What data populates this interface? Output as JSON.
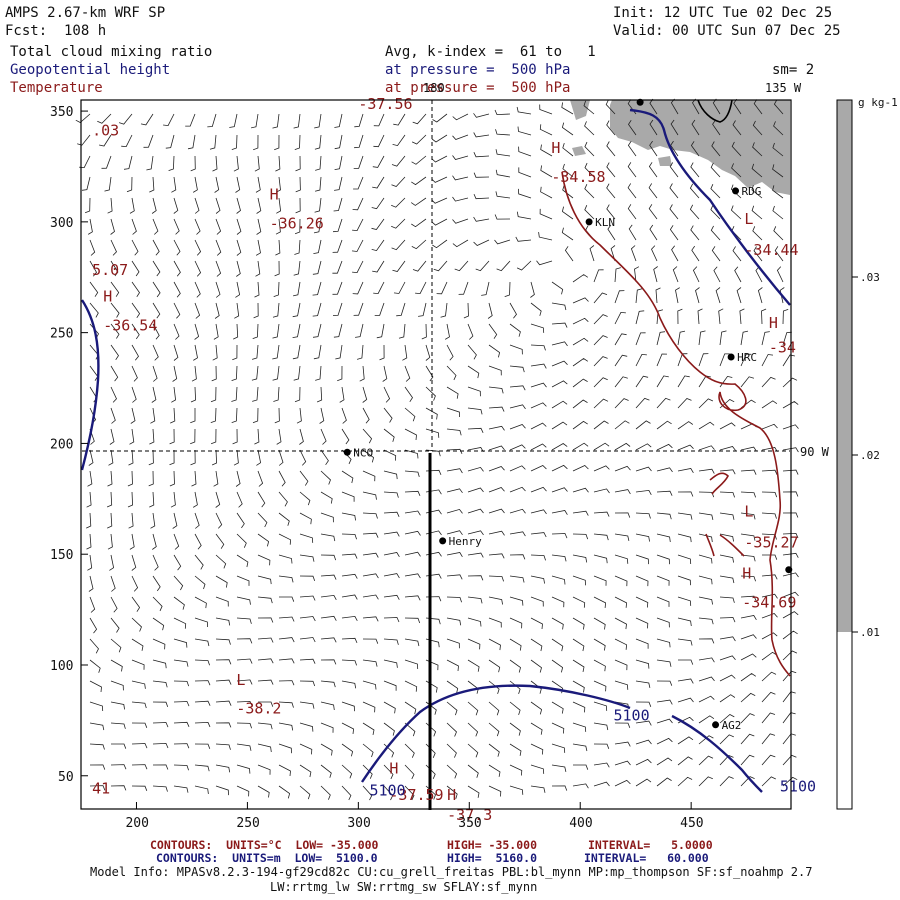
{
  "header": {
    "title": "AMPS 2.67-km WRF SP",
    "forecast": "Fcst:  108 h",
    "init": "Init: 12 UTC Tue 02 Dec 25",
    "valid": "Valid: 00 UTC Sun 07 Dec 25",
    "field1": "Total cloud mixing ratio",
    "field2": "Geopotential height",
    "field3": "Temperature",
    "avg": "Avg, k-index =  61 to   1",
    "pressure1": "at pressure =  500 hPa",
    "pressure2": "at pressure =  500 hPa",
    "smoothing": "sm= 2"
  },
  "axes": {
    "x_ticks": [
      "200",
      "250",
      "300",
      "350",
      "400",
      "450"
    ],
    "y_ticks": [
      "350",
      "300",
      "250",
      "200",
      "150",
      "100",
      "50"
    ],
    "meridian_180": "180",
    "meridian_135w": "135 W",
    "meridian_90w": "90 W"
  },
  "colorbar": {
    "unit": "g kg-1",
    "labels": [
      ".03",
      ".02",
      ".01"
    ],
    "colors": [
      "#a9a9a9",
      "#ffffff"
    ]
  },
  "stations": [
    {
      "name": "NCO",
      "x": 295,
      "y": 196
    },
    {
      "name": "Henry",
      "x": 338,
      "y": 156
    },
    {
      "name": "KLN",
      "x": 404,
      "y": 300
    },
    {
      "name": "RDG",
      "x": 470,
      "y": 314
    },
    {
      "name": "HRC",
      "x": 468,
      "y": 239
    },
    {
      "name": "AG2",
      "x": 461,
      "y": 73
    }
  ],
  "labels": {
    "temp": [
      {
        "text": "-37.56",
        "x": 300,
        "y": 351
      },
      {
        "text": "H",
        "x": 387,
        "y": 331
      },
      {
        "text": "-34.58",
        "x": 387,
        "y": 318
      },
      {
        "text": "H",
        "x": 260,
        "y": 310
      },
      {
        "text": "-36.26",
        "x": 260,
        "y": 297
      },
      {
        "text": "L",
        "x": 474,
        "y": 299
      },
      {
        "text": "-34.44",
        "x": 474,
        "y": 285
      },
      {
        "text": "H",
        "x": 185,
        "y": 264
      },
      {
        "text": "-36.54",
        "x": 185,
        "y": 251
      },
      {
        "text": "H",
        "x": 485,
        "y": 252
      },
      {
        "text": "-34",
        "x": 485,
        "y": 241
      },
      {
        "text": "L",
        "x": 474,
        "y": 167
      },
      {
        "text": "-35.27",
        "x": 474,
        "y": 153
      },
      {
        "text": "H",
        "x": 473,
        "y": 139
      },
      {
        "text": "-34.69",
        "x": 473,
        "y": 126
      },
      {
        "text": "L",
        "x": 245,
        "y": 91
      },
      {
        "text": "-38.2",
        "x": 245,
        "y": 78
      },
      {
        "text": "H",
        "x": 314,
        "y": 51
      },
      {
        "text": "-37.59",
        "x": 314,
        "y": 39
      },
      {
        "text": "H",
        "x": 340,
        "y": 39
      },
      {
        "text": "-37.3",
        "x": 340,
        "y": 30
      },
      {
        "text": ".03",
        "x": 180,
        "y": 339
      },
      {
        "text": "5.07",
        "x": 180,
        "y": 276
      },
      {
        "text": "41",
        "x": 180,
        "y": 42
      }
    ],
    "height": [
      {
        "text": "5100",
        "x": 415,
        "y": 75
      },
      {
        "text": "5100",
        "x": 305,
        "y": 41
      },
      {
        "text": "5100",
        "x": 490,
        "y": 43
      }
    ]
  },
  "footer": {
    "line1_a": "CONTOURS:  UNITS=°C  LOW= -35.000",
    "line1_b": "HIGH= -35.000",
    "line1_c": "INTERVAL=   5.0000",
    "line2_a": "CONTOURS:  UNITS=m  LOW=  5100.0",
    "line2_b": "HIGH=  5160.0",
    "line2_c": "INTERVAL=   60.000",
    "model1": "Model Info: MPASv8.2.3-194-gf29cd82c CU:cu_grell_freitas PBL:bl_mynn MP:mp_thompson SF:sf_noahmp 2.7",
    "model2": "LW:rrtmg_lw SW:rrtmg_sw SFLAY:sf_mynn"
  }
}
